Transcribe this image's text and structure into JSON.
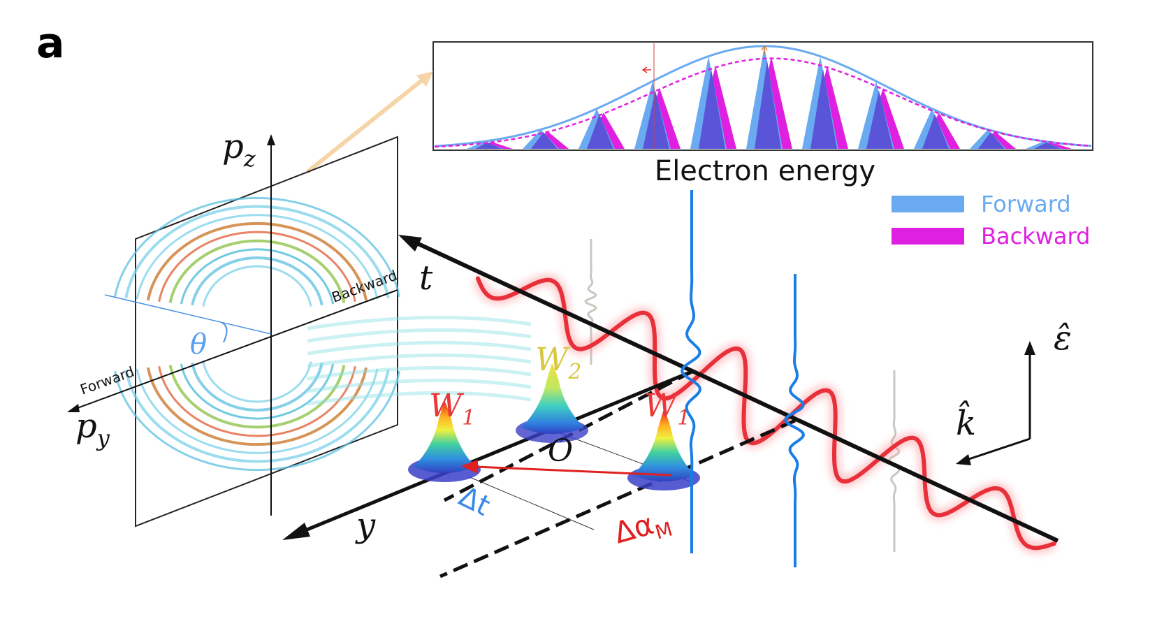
{
  "panel_label": "a",
  "inset": {
    "xlabel": "Electron energy",
    "legend": [
      {
        "name": "Forward",
        "color": "#6aaaf0"
      },
      {
        "name": "Backward",
        "color": "#e020e0"
      }
    ]
  },
  "screen": {
    "axis_pz": "p",
    "axis_pz_sub": "z",
    "axis_py": "p",
    "axis_py_sub": "y",
    "forward_label": "Forward",
    "backward_label": "Backward",
    "theta_label": "θ"
  },
  "labels": {
    "t_axis": "t",
    "y_axis": "y",
    "origin": "O",
    "w1_left": "W",
    "w1_left_sub": "1",
    "w2": "W",
    "w2_sub": "2",
    "w1_right": "W",
    "w1_right_sub": "1",
    "delta_t": "Δt",
    "delta_alpha": "Δα",
    "delta_alpha_sub": "M",
    "k_hat": "k̂",
    "eps_hat": "ε̂"
  },
  "colors": {
    "laser": "#e8303a",
    "attosecond_pulse": "#1a7ee6",
    "faint_pulse": "#c8c8c0",
    "forward": "#6aaaf0",
    "backward": "#e020e0",
    "peak_fill": "#5a55d8",
    "arrow_inset": "#f5d4a8"
  }
}
